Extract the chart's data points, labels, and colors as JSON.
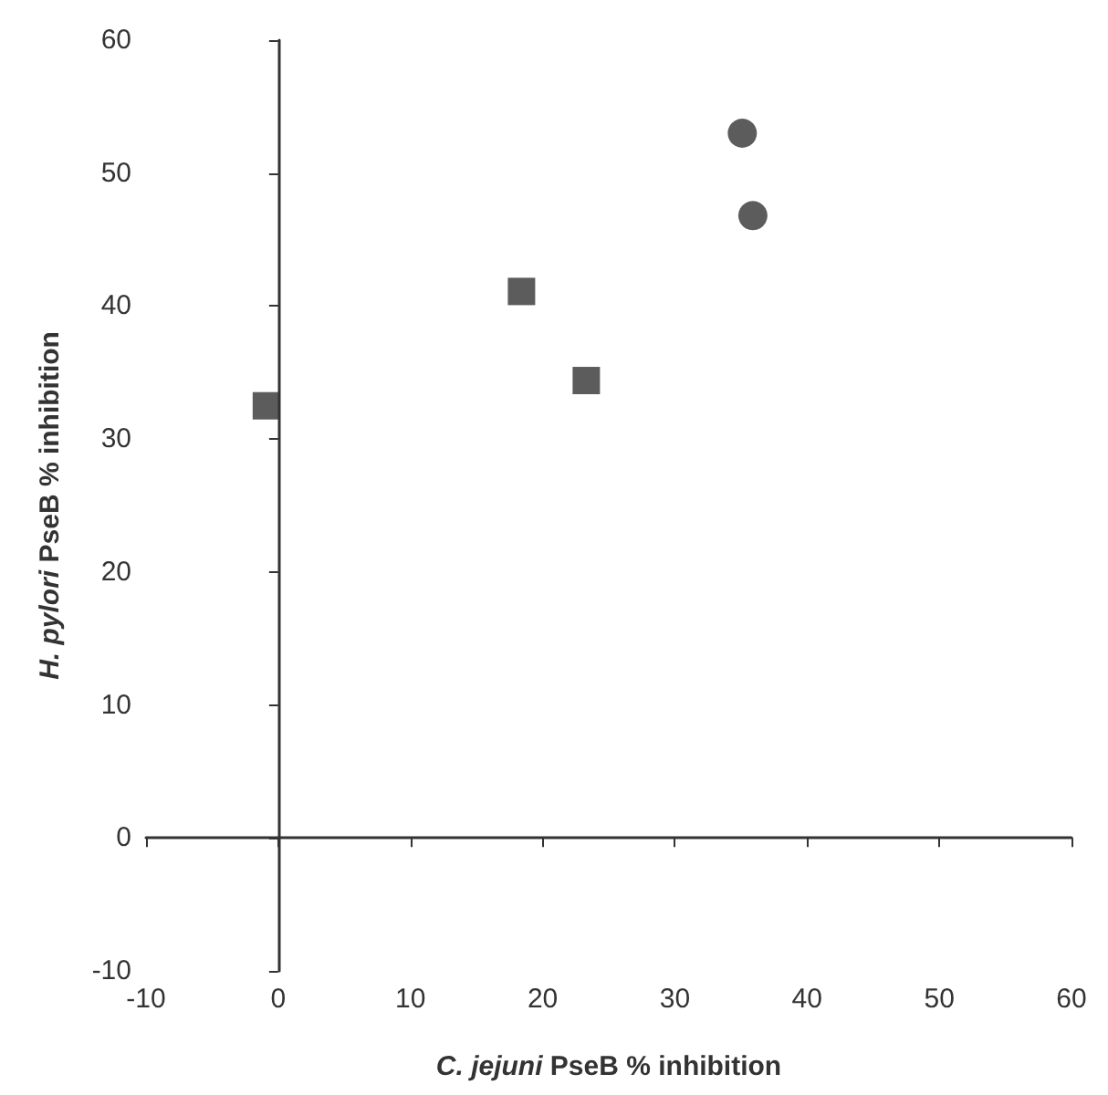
{
  "chart_data": {
    "type": "scatter",
    "xlabel": "C. jejuni PseB % inhibition",
    "ylabel": "H. pylori PseB % inhibition",
    "series": [
      {
        "color": "#333333",
        "marker": "square",
        "x": [
          -0.9,
          18.4,
          23.3
        ],
        "values": [
          32.5,
          41.1,
          34.4
        ]
      },
      {
        "color": "#333333",
        "marker": "circle",
        "x": [
          35.1,
          35.9
        ],
        "values": [
          53.0,
          46.8
        ]
      }
    ],
    "xlim": [
      -10,
      60
    ],
    "xticks": [
      -10,
      0,
      10,
      20,
      30,
      40,
      50,
      60
    ],
    "ylim": [
      -10,
      60
    ],
    "yticks": [
      -10,
      0,
      10,
      20,
      30,
      40,
      50,
      60
    ]
  }
}
